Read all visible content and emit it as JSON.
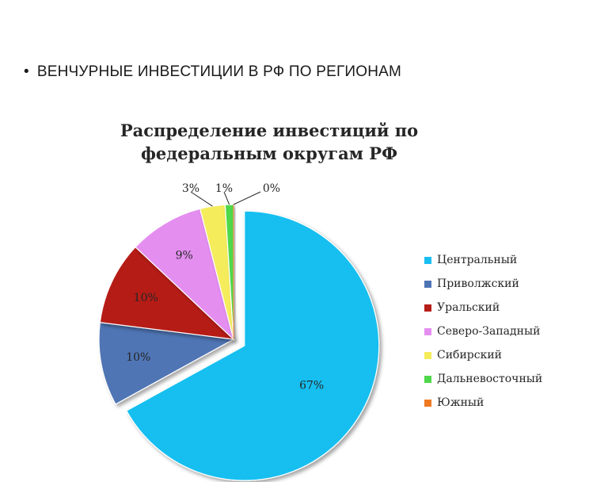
{
  "heading": {
    "bullet": "•",
    "text": "ВЕНЧУРНЫЕ ИНВЕСТИЦИИ В РФ ПО РЕГИОНАМ"
  },
  "chart_data": {
    "type": "pie",
    "title_line1": "Распределение инвестиций по",
    "title_line2": "федеральным округам РФ",
    "legend_position": "right",
    "exploded_slice": "Центральный",
    "slices": [
      {
        "name": "Центральный",
        "value": 67,
        "label": "67%",
        "color": "#19bff0"
      },
      {
        "name": "Приволжский",
        "value": 10,
        "label": "10%",
        "color": "#4f74b4"
      },
      {
        "name": "Уральский",
        "value": 10,
        "label": "10%",
        "color": "#b61e18"
      },
      {
        "name": "Северо-Западный",
        "value": 9,
        "label": "9%",
        "color": "#e48ef0"
      },
      {
        "name": "Сибирский",
        "value": 3,
        "label": "3%",
        "color": "#f5ec5c"
      },
      {
        "name": "Дальневосточный",
        "value": 1,
        "label": "1%",
        "color": "#4fd84a"
      },
      {
        "name": "Южный",
        "value": 0,
        "label": "0%",
        "color": "#ef7a22"
      }
    ]
  }
}
